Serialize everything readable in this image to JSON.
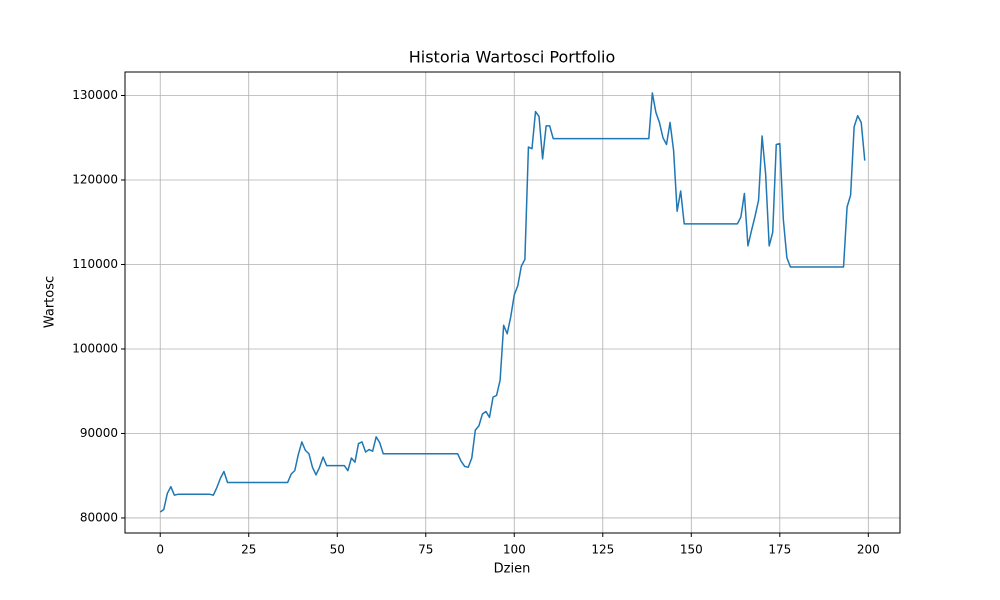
{
  "chart_data": {
    "type": "line",
    "title": "Historia Wartosci Portfolio",
    "x_label": "Dzien",
    "y_label": "Wartosc",
    "color": "#1f77b4",
    "grid": true,
    "xlim": [
      -9.95,
      208.95
    ],
    "xticks": [
      0,
      25,
      50,
      75,
      100,
      125,
      150,
      175,
      200
    ],
    "ylim": [
      78220,
      132780
    ],
    "yticks": [
      80000,
      90000,
      100000,
      110000,
      120000,
      130000
    ],
    "x": [
      0,
      1,
      2,
      3,
      4,
      5,
      6,
      7,
      8,
      9,
      10,
      11,
      12,
      13,
      14,
      15,
      16,
      17,
      18,
      19,
      20,
      21,
      22,
      23,
      24,
      25,
      26,
      27,
      28,
      29,
      30,
      31,
      32,
      33,
      34,
      35,
      36,
      37,
      38,
      39,
      40,
      41,
      42,
      43,
      44,
      45,
      46,
      47,
      48,
      49,
      50,
      51,
      52,
      53,
      54,
      55,
      56,
      57,
      58,
      59,
      60,
      61,
      62,
      63,
      64,
      65,
      66,
      67,
      68,
      69,
      70,
      71,
      72,
      73,
      74,
      75,
      76,
      77,
      78,
      79,
      80,
      81,
      82,
      83,
      84,
      85,
      86,
      87,
      88,
      89,
      90,
      91,
      92,
      93,
      94,
      95,
      96,
      97,
      98,
      99,
      100,
      101,
      102,
      103,
      104,
      105,
      106,
      107,
      108,
      109,
      110,
      111,
      112,
      113,
      114,
      115,
      116,
      117,
      118,
      119,
      120,
      121,
      122,
      123,
      124,
      125,
      126,
      127,
      128,
      129,
      130,
      131,
      132,
      133,
      134,
      135,
      136,
      137,
      138,
      139,
      140,
      141,
      142,
      143,
      144,
      145,
      146,
      147,
      148,
      149,
      150,
      151,
      152,
      153,
      154,
      155,
      156,
      157,
      158,
      159,
      160,
      161,
      162,
      163,
      164,
      165,
      166,
      167,
      168,
      169,
      170,
      171,
      172,
      173,
      174,
      175,
      176,
      177,
      178,
      179,
      180,
      181,
      182,
      183,
      184,
      185,
      186,
      187,
      188,
      189,
      190,
      191,
      192,
      193,
      194,
      195,
      196,
      197,
      198,
      199
    ],
    "values": [
      80700,
      81000,
      82900,
      83700,
      82700,
      82800,
      82800,
      82800,
      82800,
      82800,
      82800,
      82800,
      82800,
      82800,
      82800,
      82700,
      83600,
      84700,
      85500,
      84200,
      84200,
      84200,
      84200,
      84200,
      84200,
      84200,
      84200,
      84200,
      84200,
      84200,
      84200,
      84200,
      84200,
      84200,
      84200,
      84200,
      84200,
      85200,
      85600,
      87500,
      89000,
      88000,
      87600,
      86000,
      85100,
      86000,
      87200,
      86200,
      86200,
      86200,
      86200,
      86200,
      86200,
      85600,
      87100,
      86600,
      88800,
      89000,
      87800,
      88100,
      87900,
      89600,
      88900,
      87600,
      87600,
      87600,
      87600,
      87600,
      87600,
      87600,
      87600,
      87600,
      87600,
      87600,
      87600,
      87600,
      87600,
      87600,
      87600,
      87600,
      87600,
      87600,
      87600,
      87600,
      87600,
      86700,
      86100,
      86000,
      87100,
      90400,
      90900,
      92300,
      92600,
      91900,
      94300,
      94500,
      96300,
      102800,
      101800,
      103800,
      106400,
      107500,
      109800,
      110600,
      123900,
      123700,
      128100,
      127500,
      122500,
      126400,
      126400,
      124900,
      124900,
      124900,
      124900,
      124900,
      124900,
      124900,
      124900,
      124900,
      124900,
      124900,
      124900,
      124900,
      124900,
      124900,
      124900,
      124900,
      124900,
      124900,
      124900,
      124900,
      124900,
      124900,
      124900,
      124900,
      124900,
      124900,
      124900,
      130300,
      128000,
      126800,
      125000,
      124200,
      126800,
      123500,
      116300,
      118700,
      114800,
      114800,
      114800,
      114800,
      114800,
      114800,
      114800,
      114800,
      114800,
      114800,
      114800,
      114800,
      114800,
      114800,
      114800,
      114800,
      115600,
      118400,
      112200,
      114000,
      115700,
      117600,
      125200,
      120700,
      112200,
      113800,
      124200,
      124300,
      115300,
      110800,
      109700,
      109700,
      109700,
      109700,
      109700,
      109700,
      109700,
      109700,
      109700,
      109700,
      109700,
      109700,
      109700,
      109700,
      109700,
      109700,
      116800,
      118200,
      126300,
      127600,
      126800,
      122300
    ]
  }
}
